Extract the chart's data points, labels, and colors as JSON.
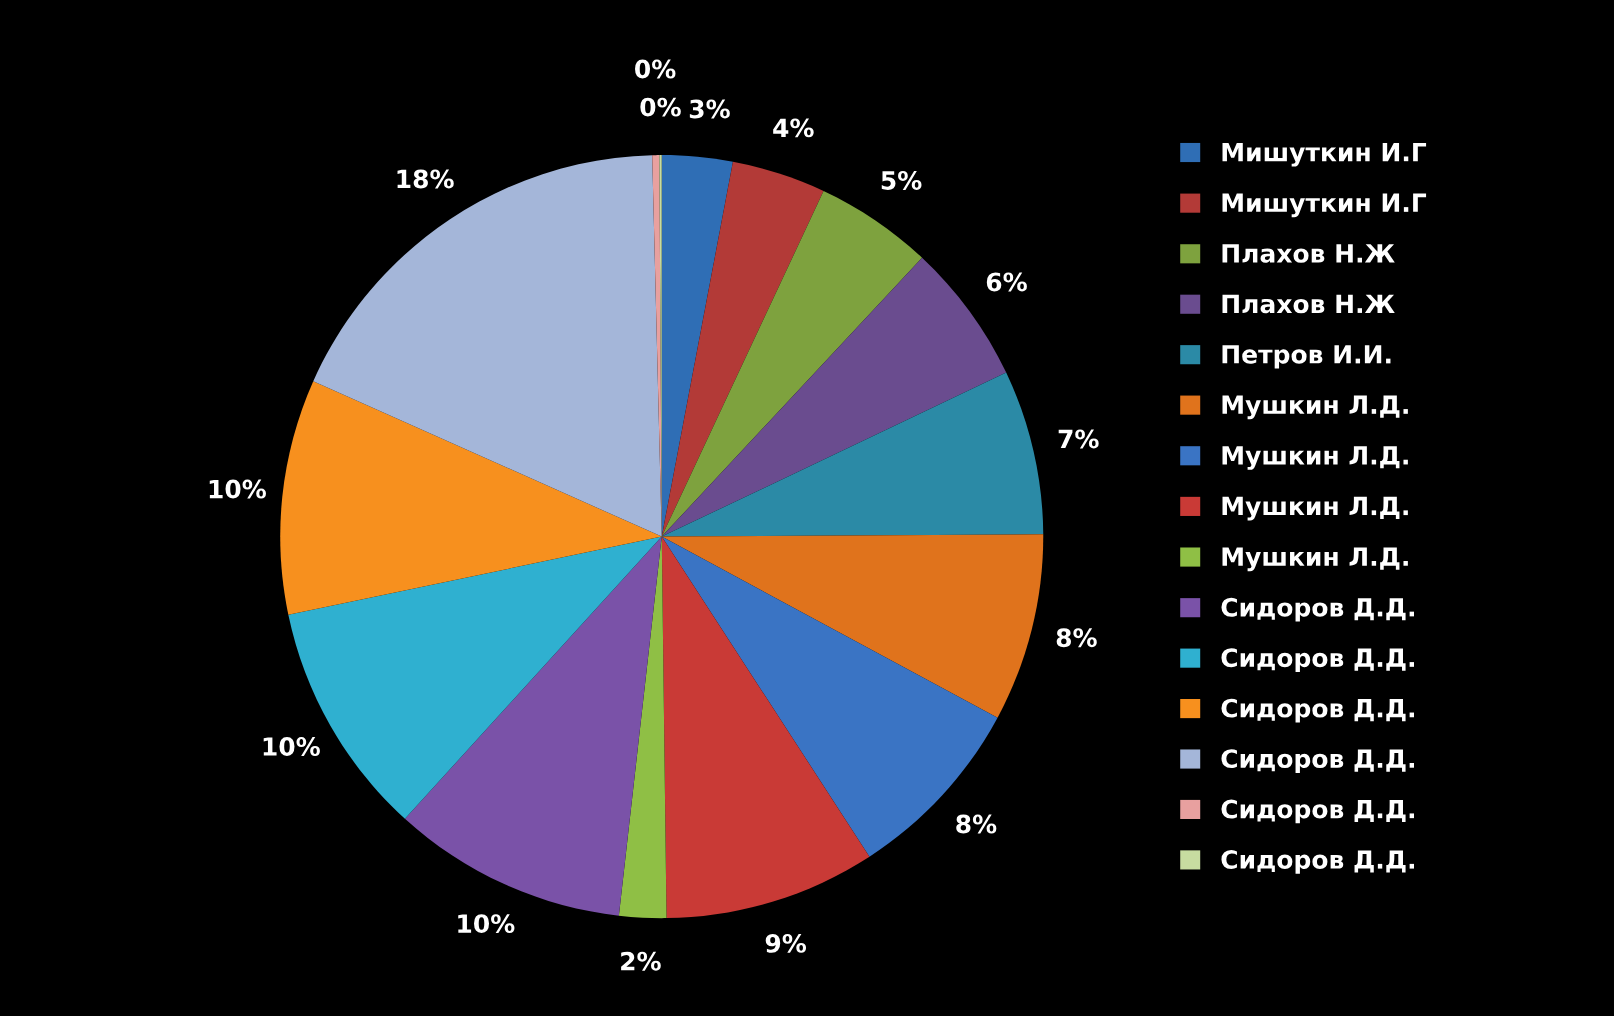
{
  "chart_data": {
    "type": "pie",
    "categories": [
      "Мишуткин И.Г",
      "Мишуткин И.Г",
      "Плахов Н.Ж",
      "Плахов Н.Ж",
      "Петров И.И.",
      "Мушкин Л.Д.",
      "Мушкин Л.Д.",
      "Мушкин Л.Д.",
      "Мушкин Л.Д.",
      "Сидоров Д.Д.",
      "Сидоров Д.Д.",
      "Сидоров Д.Д.",
      "Сидоров Д.Д.",
      "Сидоров Д.Д.",
      "Сидоров Д.Д."
    ],
    "values": [
      3,
      4,
      5,
      6,
      7,
      8,
      8,
      9,
      2,
      10,
      10,
      10,
      18,
      0.3,
      0.1
    ],
    "value_labels": [
      "3%",
      "4%",
      "5%",
      "6%",
      "7%",
      "8%",
      "8%",
      "9%",
      "2%",
      "10%",
      "10%",
      "10%",
      "18%",
      "0%",
      "0%"
    ],
    "colors": [
      "#2f6eb5",
      "#b33a37",
      "#7ea23e",
      "#6a4c8f",
      "#2b8aa6",
      "#e0731c",
      "#3a74c4",
      "#c93a36",
      "#8fbf45",
      "#7a52a8",
      "#2fb0d0",
      "#f7901e",
      "#a4b6d9",
      "#e8a09f",
      "#c7dca0"
    ],
    "legend": "right"
  }
}
